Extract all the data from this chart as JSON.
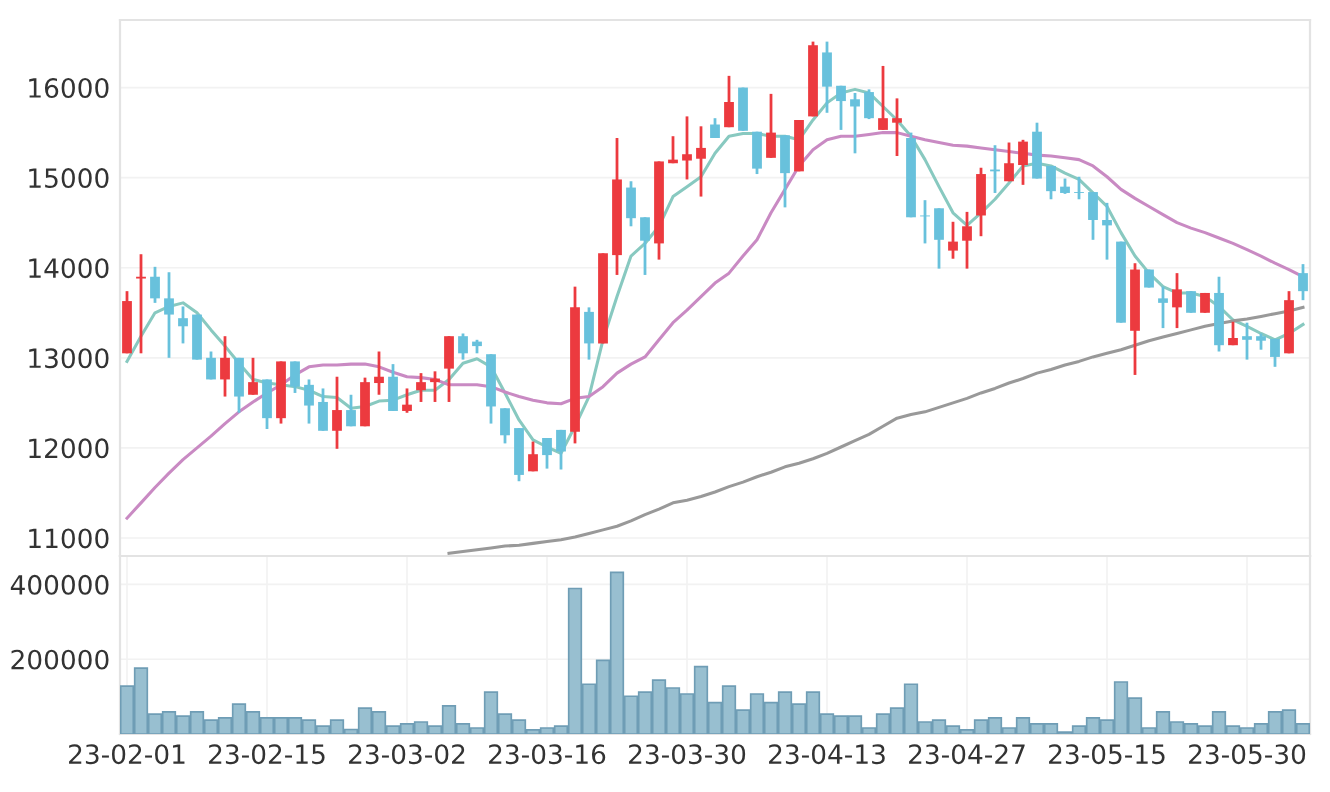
{
  "chart_data": [
    {
      "type": "candlestick",
      "tick_labels": "y",
      "grid": true,
      "ylim": [
        10800,
        16750
      ],
      "yticks": [
        11000,
        12000,
        13000,
        14000,
        15000,
        16000
      ],
      "categories": [
        null,
        null,
        null,
        null,
        null,
        null,
        null,
        null,
        null,
        null,
        null,
        null,
        null,
        null,
        null,
        null,
        null,
        null,
        null,
        null,
        null,
        null,
        null,
        null,
        null,
        null,
        null,
        null,
        null,
        null,
        null,
        null,
        null,
        null,
        null,
        null,
        null,
        null,
        null,
        null,
        null,
        null,
        null,
        null,
        null,
        null,
        null,
        null,
        null,
        null,
        null,
        null,
        null,
        null,
        null,
        null,
        null,
        null,
        null,
        null,
        null,
        null,
        null,
        null,
        null,
        null,
        null,
        null,
        null,
        null,
        null,
        null,
        null,
        null,
        null,
        null,
        null,
        null,
        null,
        null,
        null,
        null,
        null,
        null,
        null
      ],
      "ohlc": [
        [
          13050,
          13740,
          13050,
          13630
        ],
        [
          13880,
          14150,
          13050,
          13900
        ],
        [
          13900,
          14010,
          13610,
          13660
        ],
        [
          13660,
          13950,
          13000,
          13480
        ],
        [
          13440,
          13570,
          13160,
          13350
        ],
        [
          13480,
          13480,
          12980,
          12980
        ],
        [
          13000,
          13070,
          12760,
          12760
        ],
        [
          12760,
          13240,
          12570,
          13000
        ],
        [
          13000,
          13000,
          12390,
          12570
        ],
        [
          12590,
          13000,
          12590,
          12730
        ],
        [
          12760,
          12760,
          12210,
          12330
        ],
        [
          12330,
          12960,
          12270,
          12960
        ],
        [
          12960,
          12960,
          12610,
          12680
        ],
        [
          12700,
          12760,
          12270,
          12470
        ],
        [
          12510,
          12660,
          12190,
          12190
        ],
        [
          12190,
          12790,
          11990,
          12420
        ],
        [
          12420,
          12590,
          12240,
          12240
        ],
        [
          12240,
          12780,
          12240,
          12730
        ],
        [
          12720,
          13070,
          12590,
          12790
        ],
        [
          12790,
          12930,
          12410,
          12410
        ],
        [
          12410,
          12660,
          12390,
          12480
        ],
        [
          12640,
          12830,
          12510,
          12730
        ],
        [
          12730,
          12850,
          12510,
          12770
        ],
        [
          12880,
          13240,
          12510,
          13240
        ],
        [
          13240,
          13270,
          12980,
          13050
        ],
        [
          13180,
          13200,
          13050,
          13130
        ],
        [
          13040,
          13040,
          12270,
          12460
        ],
        [
          12440,
          12440,
          12050,
          12140
        ],
        [
          12220,
          12220,
          11630,
          11700
        ],
        [
          11740,
          12070,
          11740,
          11930
        ],
        [
          12110,
          12110,
          11770,
          11920
        ],
        [
          12200,
          12200,
          11760,
          11960
        ],
        [
          12180,
          13790,
          12050,
          13560
        ],
        [
          13510,
          13560,
          12980,
          13160
        ],
        [
          13160,
          14160,
          13160,
          14160
        ],
        [
          14140,
          15440,
          13920,
          14980
        ],
        [
          14890,
          14960,
          14460,
          14550
        ],
        [
          14560,
          14560,
          13920,
          14300
        ],
        [
          14270,
          15180,
          14090,
          15180
        ],
        [
          15160,
          15460,
          15160,
          15200
        ],
        [
          15190,
          15680,
          14980,
          15260
        ],
        [
          15210,
          15570,
          14790,
          15330
        ],
        [
          15590,
          15660,
          15440,
          15440
        ],
        [
          15560,
          16130,
          15560,
          15840
        ],
        [
          16000,
          16000,
          15520,
          15520
        ],
        [
          15510,
          15510,
          15040,
          15100
        ],
        [
          15220,
          15930,
          15220,
          15500
        ],
        [
          15470,
          15470,
          14670,
          15050
        ],
        [
          15070,
          15640,
          15070,
          15640
        ],
        [
          15680,
          16510,
          15680,
          16470
        ],
        [
          16390,
          16510,
          15720,
          16010
        ],
        [
          16020,
          16020,
          15530,
          15850
        ],
        [
          15870,
          15940,
          15270,
          15790
        ],
        [
          15950,
          15980,
          15650,
          15660
        ],
        [
          15530,
          16240,
          15530,
          15660
        ],
        [
          15610,
          15880,
          15240,
          15660
        ],
        [
          15440,
          15500,
          14560,
          14560
        ],
        [
          14580,
          14750,
          14270,
          14570
        ],
        [
          14660,
          14660,
          13990,
          14310
        ],
        [
          14190,
          14510,
          14100,
          14290
        ],
        [
          14300,
          14620,
          13990,
          14460
        ],
        [
          14580,
          15110,
          14350,
          15040
        ],
        [
          15090,
          15360,
          14830,
          15070
        ],
        [
          14960,
          15390,
          14960,
          15160
        ],
        [
          15140,
          15420,
          14920,
          15400
        ],
        [
          15510,
          15610,
          14990,
          14990
        ],
        [
          15130,
          15130,
          14760,
          14850
        ],
        [
          14900,
          14990,
          14820,
          14830
        ],
        [
          14840,
          15010,
          14760,
          14830
        ],
        [
          14840,
          14840,
          14310,
          14530
        ],
        [
          14530,
          14720,
          14090,
          14470
        ],
        [
          14290,
          14290,
          13390,
          13390
        ],
        [
          13300,
          14050,
          12810,
          13980
        ],
        [
          13980,
          13980,
          13780,
          13780
        ],
        [
          13660,
          13790,
          13330,
          13610
        ],
        [
          13560,
          13940,
          13330,
          13760
        ],
        [
          13740,
          13740,
          13500,
          13500
        ],
        [
          13500,
          13720,
          13500,
          13720
        ],
        [
          13720,
          13900,
          13070,
          13140
        ],
        [
          13140,
          13400,
          13140,
          13220
        ],
        [
          13240,
          13390,
          12980,
          13200
        ],
        [
          13240,
          13270,
          13090,
          13190
        ],
        [
          13210,
          13210,
          12900,
          13010
        ],
        [
          13050,
          13740,
          13050,
          13640
        ],
        [
          13940,
          14040,
          13640,
          13740
        ]
      ],
      "colors": [
        "#ec3a3f",
        "#ec3a3f",
        "#68c1dc",
        "#68c1dc",
        "#68c1dc",
        "#68c1dc",
        "#68c1dc",
        "#ec3a3f",
        "#68c1dc",
        "#ec3a3f",
        "#68c1dc",
        "#ec3a3f",
        "#68c1dc",
        "#68c1dc",
        "#68c1dc",
        "#ec3a3f",
        "#68c1dc",
        "#ec3a3f",
        "#ec3a3f",
        "#68c1dc",
        "#ec3a3f",
        "#ec3a3f",
        "#ec3a3f",
        "#ec3a3f",
        "#68c1dc",
        "#68c1dc",
        "#68c1dc",
        "#68c1dc",
        "#68c1dc",
        "#ec3a3f",
        "#68c1dc",
        "#68c1dc",
        "#ec3a3f",
        "#68c1dc",
        "#ec3a3f",
        "#ec3a3f",
        "#68c1dc",
        "#68c1dc",
        "#ec3a3f",
        "#ec3a3f",
        "#ec3a3f",
        "#ec3a3f",
        "#68c1dc",
        "#ec3a3f",
        "#68c1dc",
        "#68c1dc",
        "#ec3a3f",
        "#68c1dc",
        "#ec3a3f",
        "#ec3a3f",
        "#68c1dc",
        "#68c1dc",
        "#68c1dc",
        "#68c1dc",
        "#ec3a3f",
        "#ec3a3f",
        "#68c1dc",
        "#68c1dc",
        "#68c1dc",
        "#ec3a3f",
        "#ec3a3f",
        "#ec3a3f",
        "#68c1dc",
        "#ec3a3f",
        "#ec3a3f",
        "#68c1dc",
        "#68c1dc",
        "#68c1dc",
        "#68c1dc",
        "#68c1dc",
        "#68c1dc",
        "#68c1dc",
        "#ec3a3f",
        "#68c1dc",
        "#68c1dc",
        "#ec3a3f",
        "#68c1dc",
        "#ec3a3f",
        "#68c1dc",
        "#ec3a3f",
        "#68c1dc",
        "#68c1dc",
        "#68c1dc",
        "#ec3a3f",
        "#68c1dc"
      ],
      "series": [
        {
          "type": "line",
          "color": "#88c9c0",
          "values": [
            12960,
            13240,
            13500,
            13570,
            13610,
            13500,
            13310,
            13130,
            12940,
            12760,
            12720,
            12700,
            12680,
            12640,
            12570,
            12560,
            12440,
            12460,
            12520,
            12530,
            12590,
            12640,
            12640,
            12760,
            12940,
            12990,
            12900,
            12610,
            12310,
            12090,
            12010,
            11940,
            12240,
            12570,
            13200,
            13680,
            14130,
            14270,
            14460,
            14790,
            14900,
            15010,
            15270,
            15460,
            15490,
            15490,
            15460,
            15460,
            15420,
            15640,
            15830,
            15940,
            15980,
            15940,
            15790,
            15640,
            15460,
            15200,
            14900,
            14610,
            14470,
            14610,
            14760,
            14940,
            15130,
            15160,
            15130,
            15050,
            14980,
            14830,
            14680,
            14390,
            14130,
            13940,
            13790,
            13720,
            13720,
            13680,
            13570,
            13420,
            13350,
            13270,
            13200,
            13270,
            13370
          ]
        },
        {
          "type": "line",
          "color": "#c98ac3",
          "values": [
            11220,
            11390,
            11560,
            11720,
            11870,
            12000,
            12130,
            12270,
            12400,
            12510,
            12610,
            12700,
            12810,
            12900,
            12920,
            12920,
            12930,
            12930,
            12900,
            12840,
            12790,
            12780,
            12760,
            12700,
            12700,
            12700,
            12680,
            12620,
            12570,
            12530,
            12500,
            12490,
            12550,
            12570,
            12680,
            12830,
            12930,
            13010,
            13200,
            13390,
            13530,
            13680,
            13830,
            13940,
            14130,
            14310,
            14610,
            14870,
            15130,
            15310,
            15420,
            15460,
            15460,
            15480,
            15500,
            15500,
            15460,
            15420,
            15390,
            15360,
            15350,
            15330,
            15310,
            15290,
            15270,
            15250,
            15240,
            15220,
            15200,
            15130,
            15010,
            14870,
            14770,
            14680,
            14590,
            14500,
            14440,
            14390,
            14330,
            14270,
            14200,
            14130,
            14050,
            13980,
            13900
          ]
        },
        {
          "type": "line",
          "color": "#999999",
          "values": [
            null,
            null,
            null,
            null,
            null,
            null,
            null,
            null,
            null,
            null,
            null,
            null,
            null,
            null,
            null,
            null,
            null,
            null,
            null,
            null,
            null,
            null,
            null,
            10830,
            10850,
            10870,
            10890,
            10910,
            10920,
            10940,
            10960,
            10980,
            11010,
            11050,
            11090,
            11130,
            11190,
            11260,
            11320,
            11390,
            11420,
            11460,
            11510,
            11570,
            11620,
            11680,
            11730,
            11790,
            11830,
            11880,
            11940,
            12010,
            12080,
            12150,
            12240,
            12330,
            12370,
            12400,
            12450,
            12500,
            12550,
            12610,
            12660,
            12720,
            12770,
            12830,
            12870,
            12920,
            12960,
            13010,
            13050,
            13090,
            13140,
            13190,
            13230,
            13270,
            13310,
            13350,
            13380,
            13410,
            13430,
            13460,
            13490,
            13520,
            13560
          ]
        }
      ]
    },
    {
      "type": "bar",
      "grid": true,
      "ylim": [
        0,
        476000
      ],
      "yticks": [
        200000,
        400000
      ],
      "color": "#98bfd0",
      "categories": [
        "23-02-01",
        null,
        null,
        null,
        null,
        null,
        null,
        null,
        null,
        null,
        "23-02-15",
        null,
        null,
        null,
        null,
        null,
        null,
        null,
        null,
        null,
        "23-03-02",
        null,
        null,
        null,
        null,
        null,
        null,
        null,
        null,
        null,
        "23-03-16",
        null,
        null,
        null,
        null,
        null,
        null,
        null,
        null,
        null,
        "23-03-30",
        null,
        null,
        null,
        null,
        null,
        null,
        null,
        null,
        null,
        "23-04-13",
        null,
        null,
        null,
        null,
        null,
        null,
        null,
        null,
        null,
        "23-04-27",
        null,
        null,
        null,
        null,
        null,
        null,
        null,
        null,
        null,
        "23-05-15",
        null,
        null,
        null,
        null,
        null,
        null,
        null,
        null,
        null,
        "23-05-30",
        null,
        null,
        null,
        null
      ],
      "values": [
        128000,
        176000,
        53000,
        59000,
        48000,
        59000,
        37000,
        43000,
        80000,
        59000,
        43000,
        43000,
        43000,
        37000,
        21000,
        37000,
        12000,
        69000,
        59000,
        21000,
        27000,
        32000,
        21000,
        75000,
        27000,
        16000,
        112000,
        53000,
        37000,
        11000,
        16000,
        21000,
        389000,
        133000,
        197000,
        432000,
        101000,
        112000,
        144000,
        123000,
        107000,
        180000,
        84000,
        128000,
        64000,
        107000,
        84000,
        112000,
        80000,
        112000,
        53000,
        48000,
        48000,
        16000,
        53000,
        69000,
        133000,
        32000,
        37000,
        21000,
        11000,
        37000,
        43000,
        16000,
        43000,
        27000,
        27000,
        5000,
        21000,
        43000,
        37000,
        139000,
        96000,
        16000,
        59000,
        32000,
        27000,
        21000,
        59000,
        21000,
        16000,
        27000,
        59000,
        64000,
        27000
      ]
    }
  ]
}
